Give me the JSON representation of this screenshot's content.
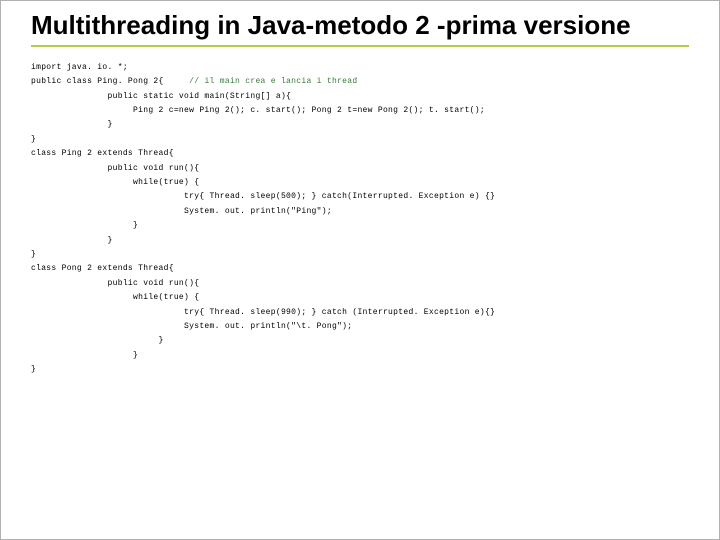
{
  "title": "Multithreading in Java-metodo 2 -prima versione",
  "code": {
    "l1": "import java. io. *;",
    "l2a": "public class Ping. Pong 2{",
    "l2b": "// il main crea e lancia i thread",
    "l3": "public static void main(String[] a){",
    "l4": "Ping 2 c=new Ping 2(); c. start(); Pong 2 t=new Pong 2(); t. start();",
    "l5": "}",
    "l6": "}",
    "l7": "class Ping 2 extends Thread{",
    "l8": "public void run(){",
    "l9": "while(true) {",
    "l10": "try{ Thread. sleep(500); } catch(Interrupted. Exception e) {}",
    "l11": "System. out. println(\"Ping\");",
    "l12": "}",
    "l13": "}",
    "l14": "}",
    "l15": "class Pong 2 extends Thread{",
    "l16": "public void run(){",
    "l17": "while(true) {",
    "l18": "try{ Thread. sleep(990); } catch (Interrupted. Exception e){}",
    "l19": "System. out. println(\"\\t. Pong\");",
    "l20": "}",
    "l21": "}",
    "l22": "}"
  },
  "colors": {
    "underline": "#b9c94a",
    "comment": "#3a7a3a",
    "text": "#000000",
    "background": "#ffffff"
  }
}
